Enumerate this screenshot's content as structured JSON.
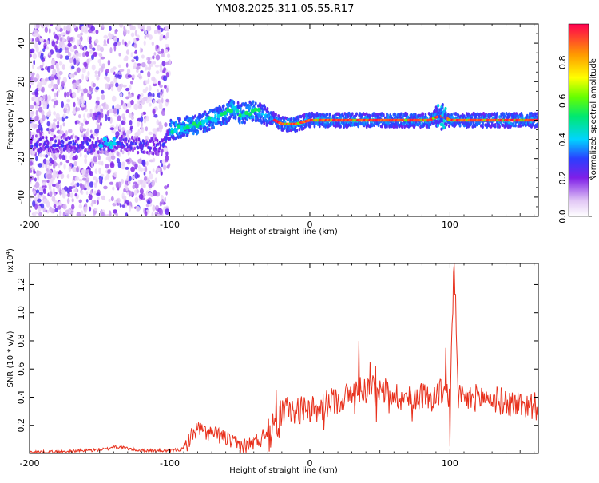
{
  "chart_data": [
    {
      "type": "heatmap",
      "title": "YM08.2025.311.05.55.R17",
      "xlabel": "Height of straight line (km)",
      "ylabel": "Frequency (Hz)",
      "xlim": [
        -200,
        163
      ],
      "ylim": [
        -50,
        50
      ],
      "xticks": [
        -200,
        -100,
        0,
        100
      ],
      "yticks": [
        -40,
        -20,
        0,
        20,
        40
      ],
      "tick_labels_x": [
        "-200",
        "-100",
        "0",
        "100"
      ],
      "tick_labels_y": [
        "-40",
        "-20",
        "0",
        "20",
        "40"
      ],
      "colorbar": {
        "label": "Normalized spectral amplitude",
        "range": [
          0.0,
          1.0
        ],
        "ticks": [
          "0.0",
          "0.2",
          "0.4",
          "0.6",
          "0.8"
        ],
        "tick_values": [
          0.0,
          0.2,
          0.4,
          0.6,
          0.8
        ]
      },
      "ridge": {
        "description_points_x": [
          -200,
          -150,
          -140,
          -105,
          -100,
          -80,
          -60,
          -55,
          -50,
          -40,
          -30,
          -25,
          -20,
          -10,
          0,
          50,
          85,
          92,
          95,
          100,
          163
        ],
        "frequency_hz": [
          -12,
          -13,
          -12,
          -14,
          -5,
          -2,
          3,
          7,
          3,
          5,
          2,
          0,
          -2,
          -2,
          0,
          0,
          0,
          2,
          2,
          0,
          0
        ]
      }
    },
    {
      "type": "line",
      "xlabel": "Height of straight line (km)",
      "ylabel": "SNR (10 * v/v)",
      "yscale_label": "(x10",
      "yscale_exp": "4",
      "yscale_close": ")",
      "xlim": [
        -200,
        163
      ],
      "ylim": [
        0,
        1.35
      ],
      "xticks": [
        -200,
        -100,
        0,
        100
      ],
      "yticks": [
        0.2,
        0.4,
        0.6,
        0.8,
        1.0,
        1.2
      ],
      "tick_labels_x": [
        "-200",
        "-100",
        "0",
        "100"
      ],
      "tick_labels_y": [
        "0.2",
        "0.4",
        "0.6",
        "0.8",
        "1.0",
        "1.2"
      ],
      "series": [
        {
          "color": "#e8301c",
          "x": [
            -200,
            -180,
            -160,
            -145,
            -140,
            -120,
            -100,
            -90,
            -85,
            -80,
            -75,
            -70,
            -65,
            -60,
            -55,
            -50,
            -45,
            -40,
            -35,
            -30,
            -25,
            -20,
            -15,
            -10,
            -5,
            0,
            5,
            10,
            15,
            20,
            25,
            30,
            35,
            40,
            45,
            50,
            55,
            60,
            65,
            70,
            75,
            80,
            85,
            90,
            95,
            100,
            103,
            106,
            110,
            120,
            130,
            140,
            150,
            160,
            163
          ],
          "values": [
            0.01,
            0.01,
            0.02,
            0.03,
            0.05,
            0.02,
            0.02,
            0.03,
            0.12,
            0.18,
            0.15,
            0.14,
            0.13,
            0.11,
            0.07,
            0.06,
            0.05,
            0.08,
            0.1,
            0.18,
            0.2,
            0.3,
            0.32,
            0.28,
            0.33,
            0.32,
            0.29,
            0.34,
            0.37,
            0.38,
            0.4,
            0.42,
            0.46,
            0.45,
            0.48,
            0.45,
            0.44,
            0.42,
            0.4,
            0.38,
            0.4,
            0.42,
            0.39,
            0.41,
            0.45,
            0.4,
            1.35,
            0.4,
            0.38,
            0.4,
            0.39,
            0.36,
            0.35,
            0.34,
            0.33
          ],
          "spikes": [
            {
              "x": -24,
              "value": 0.45
            },
            {
              "x": 35,
              "value": 0.8
            },
            {
              "x": 43,
              "value": 0.65
            },
            {
              "x": 47,
              "value": 0.62
            },
            {
              "x": 97,
              "value": 0.75
            },
            {
              "x": 100,
              "value": 0.05
            },
            {
              "x": 103,
              "value": 1.35
            },
            {
              "x": 105,
              "value": 0.7
            }
          ]
        }
      ]
    }
  ]
}
